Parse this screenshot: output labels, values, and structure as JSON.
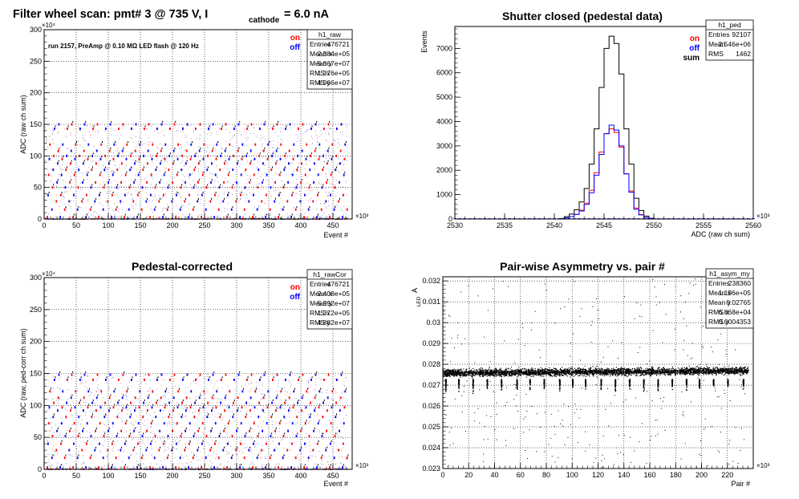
{
  "page": {
    "main_title": "Filter wheel scan: pmt#   3 @   735 V, I",
    "title_sub": "cathode",
    "title_tail": "= 6.0 nA"
  },
  "chart_data": [
    {
      "id": "raw",
      "type": "scatter",
      "title": "",
      "note": "run 2157, PreAmp @ 0.10 MΩ  LED flash @  120 Hz",
      "xlabel": "Event #",
      "ylabel": "ADC (raw ch sum)",
      "x_multiplier": "×10³",
      "y_multiplier": "×10⁴",
      "xlim": [
        0,
        480
      ],
      "ylim": [
        0,
        300
      ],
      "xticks": [
        0,
        50,
        100,
        150,
        200,
        250,
        300,
        350,
        400,
        450
      ],
      "yticks": [
        0,
        50,
        100,
        150,
        200,
        250,
        300
      ],
      "bands_y": [
        3,
        15,
        28,
        38,
        50,
        58,
        70,
        78,
        88,
        95,
        100,
        108,
        118,
        143,
        150
      ],
      "series_labels": [
        {
          "name": "on",
          "color": "#ff0000"
        },
        {
          "name": "off",
          "color": "#0000ff"
        }
      ],
      "stats": {
        "name": "h1_raw",
        "rows": [
          [
            "Entries",
            "476721"
          ],
          [
            "Mean x",
            "2.384e+05"
          ],
          [
            "Mean y",
            "5.667e+07"
          ],
          [
            "RMS x",
            "1.376e+05"
          ],
          [
            "RMS y",
            "4.966e+07"
          ]
        ]
      }
    },
    {
      "id": "ped",
      "type": "line",
      "title": "Shutter closed (pedestal data)",
      "xlabel": "ADC (raw ch sum)",
      "ylabel": "Events",
      "x_multiplier": "×10³",
      "xlim": [
        2530,
        2560
      ],
      "ylim": [
        0,
        7900
      ],
      "xticks": [
        2530,
        2535,
        2540,
        2545,
        2550,
        2555,
        2560
      ],
      "yticks": [
        0,
        1000,
        2000,
        3000,
        4000,
        5000,
        6000,
        7000
      ],
      "series_labels": [
        {
          "name": "on",
          "color": "#ff0000"
        },
        {
          "name": "off",
          "color": "#0000ff"
        },
        {
          "name": "sum",
          "color": "#000000"
        }
      ],
      "series": [
        {
          "name": "sum",
          "color": "#000000",
          "bin_edges": [
            2540.5,
            2541.0,
            2541.5,
            2542.0,
            2542.5,
            2543.0,
            2543.5,
            2544.0,
            2544.5,
            2545.0,
            2545.5,
            2546.0,
            2546.5,
            2547.0,
            2547.5,
            2548.0,
            2548.5,
            2549.0,
            2549.5,
            2550.0
          ],
          "counts": [
            20,
            100,
            200,
            380,
            700,
            1250,
            2250,
            3700,
            5400,
            7000,
            7500,
            7200,
            5950,
            3700,
            2250,
            850,
            350,
            120,
            30
          ]
        },
        {
          "name": "on",
          "color": "#ff0000",
          "bin_edges": [
            2540.5,
            2541.0,
            2541.5,
            2542.0,
            2542.5,
            2543.0,
            2543.5,
            2544.0,
            2544.5,
            2545.0,
            2545.5,
            2546.0,
            2546.5,
            2547.0,
            2547.5,
            2548.0,
            2548.5,
            2549.0,
            2549.5,
            2550.0
          ],
          "counts": [
            10,
            50,
            100,
            190,
            360,
            650,
            1180,
            1900,
            2750,
            3500,
            3700,
            3550,
            2950,
            1850,
            1150,
            450,
            180,
            60,
            15
          ]
        },
        {
          "name": "off",
          "color": "#0000ff",
          "bin_edges": [
            2540.5,
            2541.0,
            2541.5,
            2542.0,
            2542.5,
            2543.0,
            2543.5,
            2544.0,
            2544.5,
            2545.0,
            2545.5,
            2546.0,
            2546.5,
            2547.0,
            2547.5,
            2548.0,
            2548.5,
            2549.0,
            2549.5,
            2550.0
          ],
          "counts": [
            10,
            50,
            100,
            190,
            330,
            600,
            1080,
            1800,
            2650,
            3500,
            3850,
            3650,
            3000,
            1850,
            1100,
            400,
            170,
            60,
            15
          ]
        }
      ],
      "stats": {
        "name": "h1_ped",
        "rows": [
          [
            "Entries",
            "92107"
          ],
          [
            "Mean",
            "2.546e+06"
          ],
          [
            "RMS",
            "1462"
          ]
        ]
      }
    },
    {
      "id": "cor",
      "type": "scatter",
      "title": "Pedestal-corrected",
      "xlabel": "Event #",
      "ylabel": "ADC (raw, ped-corr ch sum)",
      "x_multiplier": "×10³",
      "y_multiplier": "×10⁴",
      "xlim": [
        0,
        480
      ],
      "ylim": [
        0,
        300
      ],
      "xticks": [
        0,
        50,
        100,
        150,
        200,
        250,
        300,
        350,
        400,
        450
      ],
      "yticks": [
        0,
        50,
        100,
        150,
        200,
        250,
        300
      ],
      "bands_y": [
        3,
        18,
        30,
        40,
        52,
        60,
        72,
        82,
        92,
        97,
        104,
        112,
        122,
        140,
        148
      ],
      "series_labels": [
        {
          "name": "on",
          "color": "#ff0000"
        },
        {
          "name": "off",
          "color": "#0000ff"
        }
      ],
      "stats": {
        "name": "h1_rawCor",
        "rows": [
          [
            "Entries",
            "476721"
          ],
          [
            "Mean x",
            "2.408e+05"
          ],
          [
            "Mean y",
            "5.992e+07"
          ],
          [
            "RMS x",
            "1.372e+05"
          ],
          [
            "RMS y",
            "4.882e+07"
          ]
        ]
      }
    },
    {
      "id": "asym",
      "type": "scatter",
      "title": "Pair-wise Asymmetry vs. pair #",
      "xlabel": "Pair #",
      "ylabel": "A",
      "ylabel_sub": "LED",
      "x_multiplier": "×10³",
      "xlim": [
        0,
        240
      ],
      "ylim": [
        0.023,
        0.0322
      ],
      "xticks": [
        0,
        20,
        40,
        60,
        80,
        100,
        120,
        140,
        160,
        180,
        200,
        220
      ],
      "yticks": [
        0.023,
        0.024,
        0.025,
        0.026,
        0.027,
        0.028,
        0.029,
        0.03,
        0.031,
        0.032
      ],
      "band_center": 0.0276,
      "band_halfwidth": 0.0004,
      "dips_x": [
        2,
        12,
        23,
        34,
        45,
        57,
        67,
        78,
        90,
        100,
        110,
        122,
        133,
        144,
        155,
        166,
        177,
        188,
        198,
        209,
        220,
        232
      ],
      "stats": {
        "name": "h1_asym_my",
        "rows": [
          [
            "Entries",
            "238360"
          ],
          [
            "Mean x",
            "1.196e+05"
          ],
          [
            "Mean y",
            "0.02765"
          ],
          [
            "RMS x",
            "6.868e+04"
          ],
          [
            "RMS y",
            "0.0004353"
          ]
        ]
      }
    }
  ]
}
